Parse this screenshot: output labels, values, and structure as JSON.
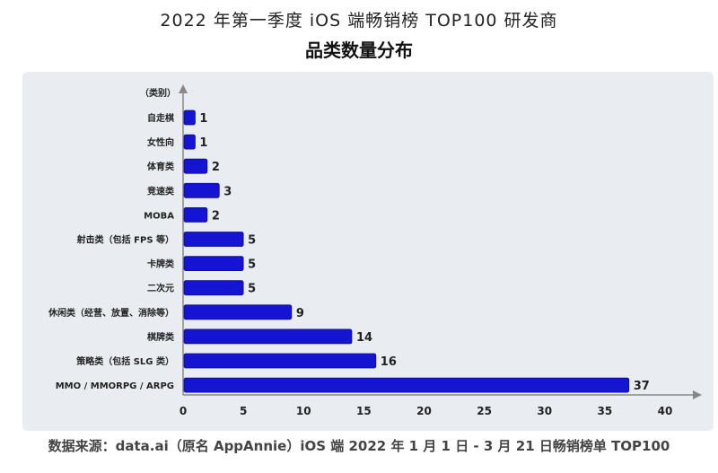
{
  "title": "2022 年第一季度 iOS 端畅销榜 TOP100 研发商",
  "subtitle": "品类数量分布",
  "source": "数据来源：data.ai（原名 AppAnnie）iOS 端 2022 年 1 月 1 日 - 3 月 21 日畅销榜单 TOP100",
  "chart_data": {
    "type": "bar",
    "orientation": "horizontal",
    "ylabel": "（类别）",
    "categories": [
      "自走棋",
      "女性向",
      "体育类",
      "竞速类",
      "MOBA",
      "射击类（包括 FPS 等）",
      "卡牌类",
      "二次元",
      "休闲类（经营、放置、消除等）",
      "棋牌类",
      "策略类（包括 SLG 类）",
      "MMO / MMORPG / ARPG"
    ],
    "values": [
      1,
      1,
      2,
      3,
      2,
      5,
      5,
      5,
      9,
      14,
      16,
      37
    ],
    "xlim": [
      0,
      40
    ],
    "xticks": [
      0,
      5,
      10,
      15,
      20,
      25,
      30,
      35,
      40
    ],
    "grid": false,
    "bar_color": "#1414d2"
  }
}
